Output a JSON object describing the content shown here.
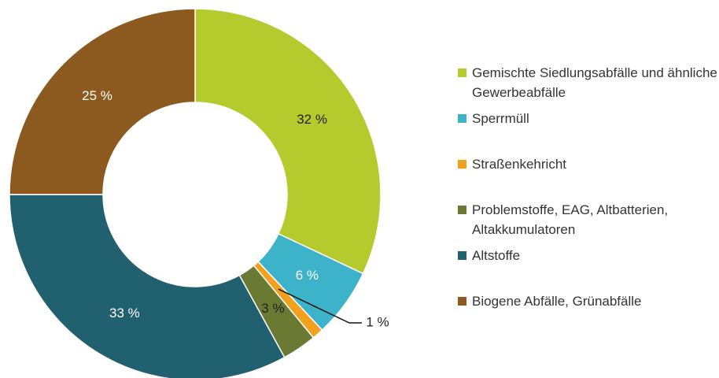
{
  "chart_data": {
    "type": "donut",
    "categories": [
      "Gemischte Siedlungsabfälle und ähnliche Gewerbeabfälle",
      "Sperrmüll",
      "Straßenkehricht",
      "Problemstoffe, EAG, Altbatterien, Altakkumulatoren",
      "Altstoffe",
      "Biogene Abfälle, Grünabfälle"
    ],
    "values": [
      32,
      6,
      1,
      3,
      33,
      25
    ],
    "value_labels": [
      "32 %",
      "6 %",
      "1 %",
      "3 %",
      "33 %",
      "25 %"
    ],
    "colors": [
      "#b5cb2d",
      "#3db3c9",
      "#f2a11f",
      "#6a7a33",
      "#21606f",
      "#8c5a1e"
    ],
    "value_label_colors": [
      "#222222",
      "#ffffff",
      "#222222",
      "#222222",
      "#ffffff",
      "#ffffff"
    ],
    "legend": "right"
  }
}
